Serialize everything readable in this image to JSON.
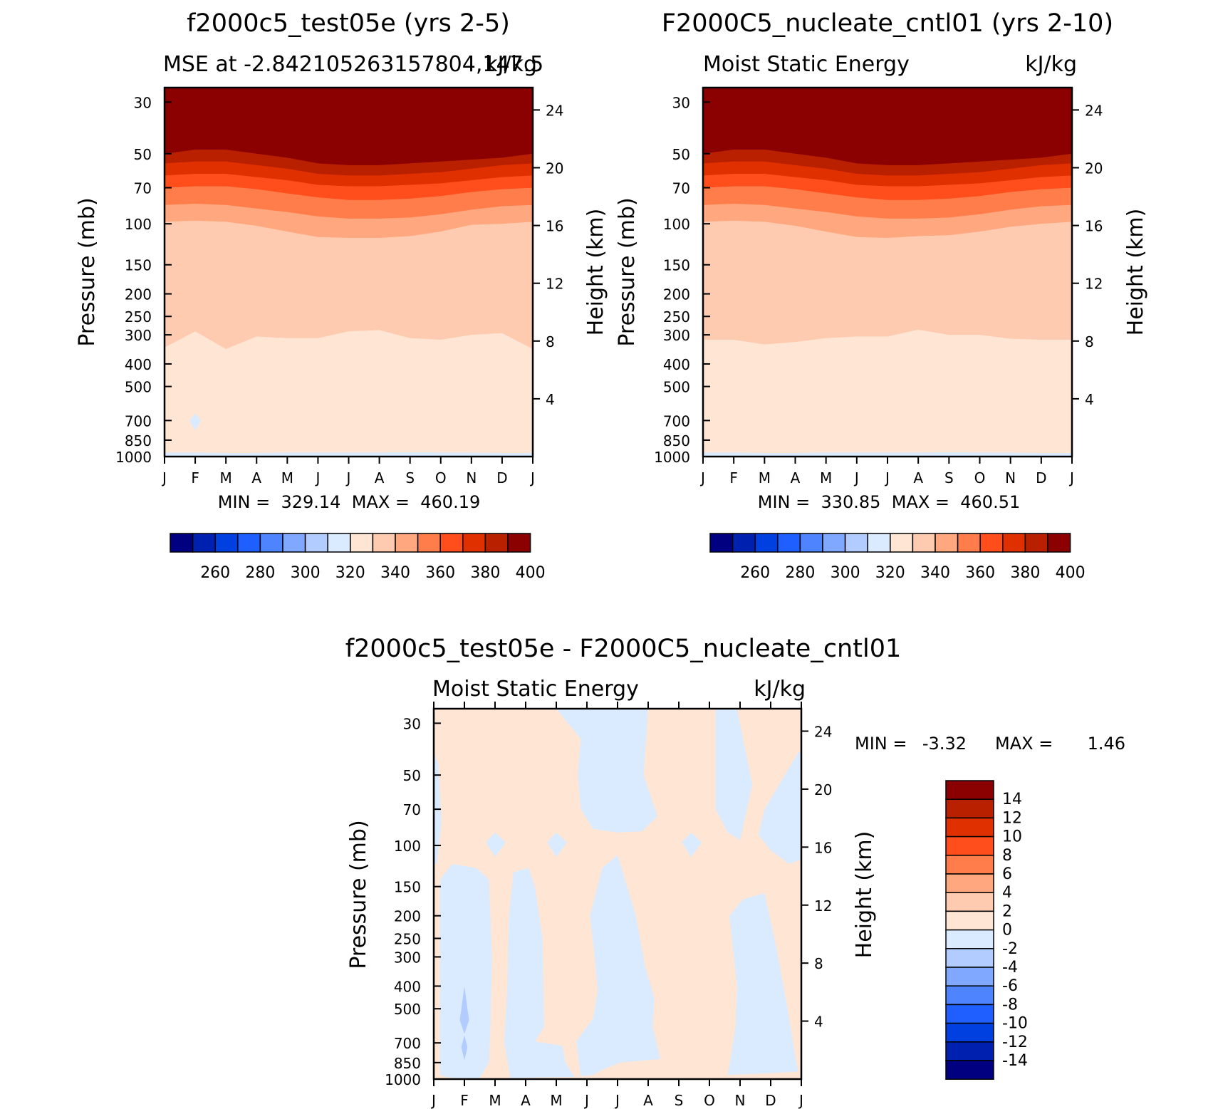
{
  "chart_data": [
    {
      "type": "contour",
      "title": "f2000c5_test05e (yrs 2-5)",
      "subtitle_left": "MSE at -2.842105263157804,147.5",
      "subtitle_right": "kJ/kg",
      "ylabel": "Pressure (mb)",
      "y2label": "Height (km)",
      "x_ticks": [
        "J",
        "F",
        "M",
        "A",
        "M",
        "J",
        "J",
        "A",
        "S",
        "O",
        "N",
        "D",
        "J"
      ],
      "y_ticks": [
        "30",
        "50",
        "70",
        "100",
        "150",
        "200",
        "250",
        "300",
        "400",
        "500",
        "700",
        "850",
        "1000"
      ],
      "y2_ticks": [
        "24",
        "20",
        "16",
        "12",
        "8",
        "4"
      ],
      "minmax": "MIN =  329.14  MAX =  460.19",
      "band_boundaries_hPa": {
        "400": [
          50,
          48,
          48,
          50,
          52,
          55,
          56,
          56,
          55,
          54,
          53,
          52,
          50
        ],
        "390": [
          55,
          54,
          54,
          56,
          58,
          61,
          62,
          62,
          61,
          60,
          58,
          56,
          55
        ],
        "380": [
          62,
          61,
          61,
          63,
          65,
          68,
          69,
          69,
          68,
          67,
          65,
          63,
          62
        ],
        "370": [
          70,
          69,
          69,
          71,
          74,
          77,
          79,
          79,
          78,
          76,
          73,
          71,
          70
        ],
        "360": [
          83,
          82,
          83,
          86,
          89,
          93,
          95,
          95,
          94,
          91,
          87,
          84,
          83
        ],
        "350": [
          98,
          97,
          98,
          102,
          108,
          114,
          115,
          115,
          113,
          108,
          101,
          100,
          98
        ],
        "340": [
          340,
          290,
          345,
          305,
          310,
          310,
          290,
          286,
          310,
          315,
          300,
          295,
          345
        ],
        "330": [
          960,
          960,
          965,
          965,
          960,
          960,
          960,
          960,
          958,
          960,
          962,
          965,
          965
        ]
      },
      "colorbar_labels": [
        "260",
        "280",
        "300",
        "320",
        "340",
        "360",
        "380",
        "400"
      ]
    },
    {
      "type": "contour",
      "title": "F2000C5_nucleate_cntl01 (yrs 2-10)",
      "subtitle_left": "Moist Static Energy",
      "subtitle_right": "kJ/kg",
      "ylabel": "Pressure (mb)",
      "y2label": "Height (km)",
      "x_ticks": [
        "J",
        "F",
        "M",
        "A",
        "M",
        "J",
        "J",
        "A",
        "S",
        "O",
        "N",
        "D",
        "J"
      ],
      "y_ticks": [
        "30",
        "50",
        "70",
        "100",
        "150",
        "200",
        "250",
        "300",
        "400",
        "500",
        "700",
        "850",
        "1000"
      ],
      "y2_ticks": [
        "24",
        "20",
        "16",
        "12",
        "8",
        "4"
      ],
      "minmax": "MIN =  330.85  MAX =  460.51",
      "band_boundaries_hPa": {
        "400": [
          50,
          48,
          48,
          50,
          52,
          55,
          56,
          56,
          55,
          54,
          53,
          52,
          50
        ],
        "390": [
          55,
          54,
          54,
          56,
          58,
          61,
          62,
          62,
          61,
          60,
          58,
          56,
          55
        ],
        "380": [
          62,
          61,
          61,
          63,
          65,
          68,
          69,
          69,
          68,
          67,
          65,
          63,
          62
        ],
        "370": [
          70,
          69,
          69,
          71,
          74,
          77,
          79,
          79,
          78,
          76,
          73,
          71,
          70
        ],
        "360": [
          83,
          82,
          83,
          86,
          89,
          93,
          95,
          95,
          94,
          91,
          87,
          84,
          83
        ],
        "350": [
          98,
          97,
          98,
          102,
          108,
          114,
          115,
          113,
          112,
          108,
          103,
          100,
          98
        ],
        "340": [
          315,
          315,
          330,
          322,
          310,
          305,
          305,
          285,
          300,
          300,
          312,
          315,
          315
        ],
        "330": [
          960,
          960,
          965,
          965,
          960,
          960,
          960,
          960,
          958,
          960,
          962,
          965,
          965
        ]
      },
      "colorbar_labels": [
        "260",
        "280",
        "300",
        "320",
        "340",
        "360",
        "380",
        "400"
      ]
    },
    {
      "type": "contour",
      "title": "f2000c5_test05e - F2000C5_nucleate_cntl01",
      "subtitle_left": "Moist Static Energy",
      "subtitle_right": "kJ/kg",
      "ylabel": "Pressure (mb)",
      "y2label": "Height (km)",
      "x_ticks": [
        "J",
        "F",
        "M",
        "A",
        "M",
        "J",
        "J",
        "A",
        "S",
        "O",
        "N",
        "D",
        "J"
      ],
      "y_ticks": [
        "30",
        "50",
        "70",
        "100",
        "150",
        "200",
        "250",
        "300",
        "400",
        "500",
        "700",
        "850",
        "1000"
      ],
      "y2_ticks": [
        "24",
        "20",
        "16",
        "12",
        "8",
        "4"
      ],
      "minmax_label_min": "MIN =",
      "minmax_min": "-3.32",
      "minmax_label_max": "MAX =",
      "minmax_max": "1.46",
      "colorbar_labels": [
        "14",
        "12",
        "10",
        "8",
        "6",
        "4",
        "2",
        "0",
        "-2",
        "-4",
        "-6",
        "-8",
        "-10",
        "-12",
        "-14"
      ]
    }
  ],
  "colors": {
    "mse_levels": [
      "#000080",
      "#0020b0",
      "#0040e0",
      "#1f5fff",
      "#4f84ff",
      "#80a8ff",
      "#b3ccff",
      "#daeaff",
      "#ffe6d4",
      "#ffcbb0",
      "#ffa77f",
      "#ff7d4a",
      "#ff4d1c",
      "#e03000",
      "#b82000",
      "#8b0000"
    ],
    "diff_levels": [
      "#8b0000",
      "#b82000",
      "#e03000",
      "#ff4d1c",
      "#ff7d4a",
      "#ffa77f",
      "#ffcbb0",
      "#ffe6d4",
      "#daeaff",
      "#b3ccff",
      "#80a8ff",
      "#4f84ff",
      "#1f5fff",
      "#0040e0",
      "#0020b0",
      "#000080"
    ]
  }
}
